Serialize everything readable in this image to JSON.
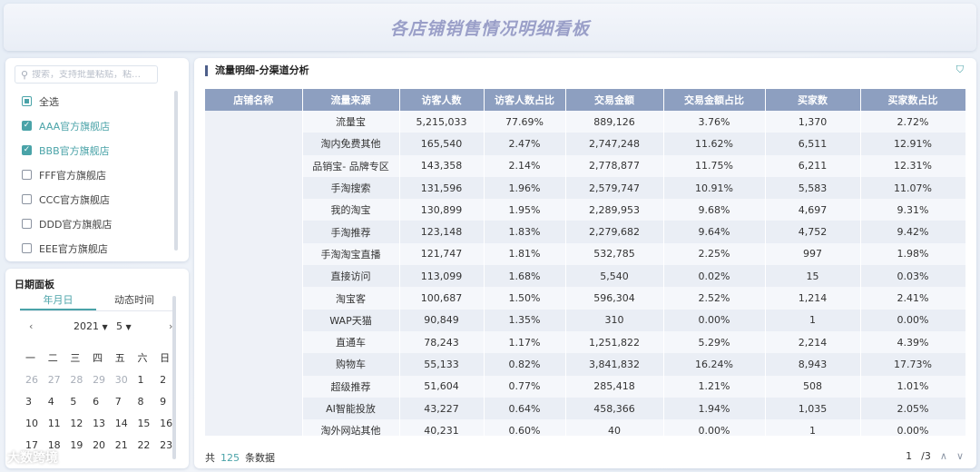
{
  "header": {
    "title": "各店铺销售情况明细看板"
  },
  "store_filter": {
    "search_placeholder": "搜索，支持批量粘贴，粘…",
    "icons": {
      "search": "search-icon"
    },
    "items": [
      {
        "label": "全选",
        "state": "partial"
      },
      {
        "label": "AAA官方旗舰店",
        "state": "checked"
      },
      {
        "label": "BBB官方旗舰店",
        "state": "checked"
      },
      {
        "label": "FFF官方旗舰店",
        "state": "unchecked"
      },
      {
        "label": "CCC官方旗舰店",
        "state": "unchecked"
      },
      {
        "label": "DDD官方旗舰店",
        "state": "unchecked"
      },
      {
        "label": "EEE官方旗舰店",
        "state": "unchecked"
      }
    ]
  },
  "date_panel": {
    "title": "日期面板",
    "tabs": [
      "年月日",
      "动态时间"
    ],
    "active_tab": "年月日",
    "year": "2021",
    "month": "5",
    "prev": "‹",
    "next": "›",
    "weekdays": [
      "一",
      "二",
      "三",
      "四",
      "五",
      "六",
      "日"
    ],
    "weeks": [
      [
        "26",
        "27",
        "28",
        "29",
        "30",
        "1",
        "2"
      ],
      [
        "3",
        "4",
        "5",
        "6",
        "7",
        "8",
        "9"
      ],
      [
        "10",
        "11",
        "12",
        "13",
        "14",
        "15",
        "16"
      ],
      [
        "17",
        "18",
        "19",
        "20",
        "21",
        "22",
        "23"
      ]
    ],
    "muted_first_week_count": 5
  },
  "main": {
    "title": "流量明细-分渠道分析",
    "icons": {
      "filter": "filter-icon"
    },
    "columns": [
      "店铺名称",
      "流量来源",
      "访客人数",
      "访客人数占比",
      "交易金额",
      "交易金额占比",
      "买家数",
      "买家数占比"
    ],
    "rows": [
      [
        "",
        "流量宝",
        "5,215,033",
        "77.69%",
        "889,126",
        "3.76%",
        "1,370",
        "2.72%"
      ],
      [
        "",
        "淘内免费其他",
        "165,540",
        "2.47%",
        "2,747,248",
        "11.62%",
        "6,511",
        "12.91%"
      ],
      [
        "",
        "品销宝- 品牌专区",
        "143,358",
        "2.14%",
        "2,778,877",
        "11.75%",
        "6,211",
        "12.31%"
      ],
      [
        "",
        "手淘搜索",
        "131,596",
        "1.96%",
        "2,579,747",
        "10.91%",
        "5,583",
        "11.07%"
      ],
      [
        "",
        "我的淘宝",
        "130,899",
        "1.95%",
        "2,289,953",
        "9.68%",
        "4,697",
        "9.31%"
      ],
      [
        "",
        "手淘推荐",
        "123,148",
        "1.83%",
        "2,279,682",
        "9.64%",
        "4,752",
        "9.42%"
      ],
      [
        "",
        "手淘淘宝直播",
        "121,747",
        "1.81%",
        "532,785",
        "2.25%",
        "997",
        "1.98%"
      ],
      [
        "",
        "直接访问",
        "113,099",
        "1.68%",
        "5,540",
        "0.02%",
        "15",
        "0.03%"
      ],
      [
        "",
        "淘宝客",
        "100,687",
        "1.50%",
        "596,304",
        "2.52%",
        "1,214",
        "2.41%"
      ],
      [
        "",
        "WAP天猫",
        "90,849",
        "1.35%",
        "310",
        "0.00%",
        "1",
        "0.00%"
      ],
      [
        "",
        "直通车",
        "78,243",
        "1.17%",
        "1,251,822",
        "5.29%",
        "2,214",
        "4.39%"
      ],
      [
        "",
        "购物车",
        "55,133",
        "0.82%",
        "3,841,832",
        "16.24%",
        "8,943",
        "17.73%"
      ],
      [
        "",
        "超级推荐",
        "51,604",
        "0.77%",
        "285,418",
        "1.21%",
        "508",
        "1.01%"
      ],
      [
        "",
        "AI智能投放",
        "43,227",
        "0.64%",
        "458,366",
        "1.94%",
        "1,035",
        "2.05%"
      ],
      [
        "",
        "淘外网站其他",
        "40,231",
        "0.60%",
        "40",
        "0.00%",
        "1",
        "0.00%"
      ]
    ],
    "footer": {
      "prefix": "共",
      "count": "125",
      "suffix": "条数据"
    },
    "pager": {
      "current": "1",
      "total": "/3",
      "up": "∧",
      "down": "∨"
    }
  },
  "watermark": "大数跨境",
  "colors": {
    "accent": "#4aa3a8",
    "header_row": "#8d9fc0",
    "title": "#9a9fc8"
  }
}
